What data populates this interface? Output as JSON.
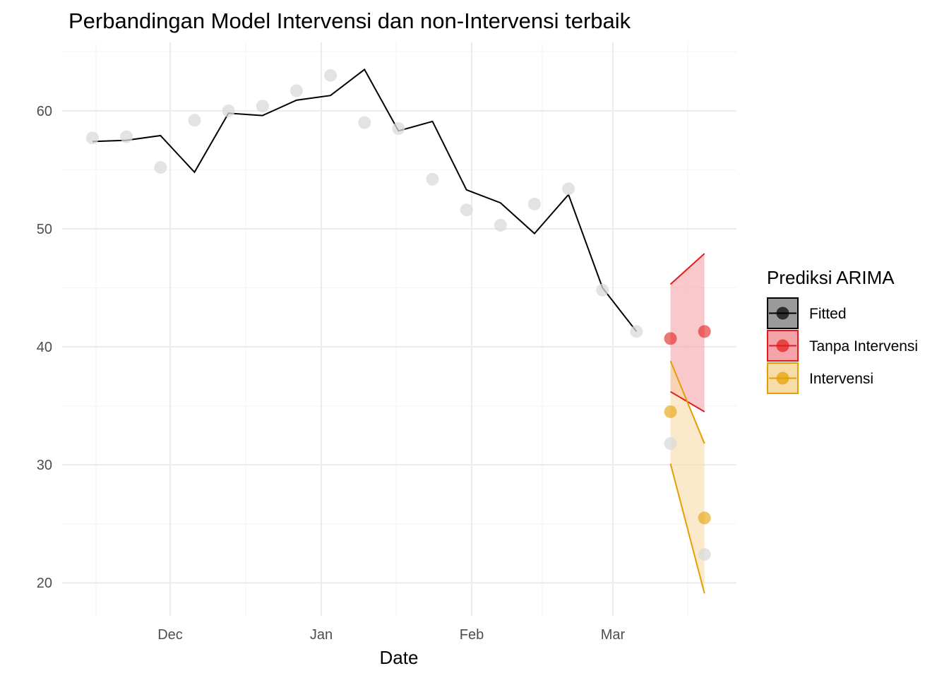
{
  "chart_data": {
    "type": "line",
    "title": "Perbandingan Model Intervensi dan non-Intervensi terbaik",
    "xlabel": "Date",
    "ylabel": "",
    "x_ticks": [
      "Dec",
      "Jan",
      "Feb",
      "Mar"
    ],
    "y_ticks": [
      20,
      30,
      40,
      50,
      60
    ],
    "ylim": [
      17.2,
      65.8
    ],
    "weeks": 19,
    "actual": [
      57.7,
      57.8,
      55.2,
      59.2,
      60.0,
      60.4,
      61.7,
      63.0,
      59.0,
      58.5,
      54.2,
      51.6,
      50.3,
      52.1,
      53.4,
      44.8,
      41.3
    ],
    "actual_test": [
      31.8,
      22.4
    ],
    "fitted": [
      57.4,
      57.5,
      57.9,
      54.8,
      59.8,
      59.6,
      60.9,
      61.3,
      63.5,
      58.3,
      59.1,
      53.3,
      52.2,
      49.6,
      52.9,
      45.0,
      41.3
    ],
    "forecast_tanpa": {
      "values": [
        40.7,
        41.3
      ],
      "lower": [
        36.2,
        34.5
      ],
      "upper": [
        45.3,
        47.9
      ]
    },
    "forecast_intervensi": {
      "values": [
        34.5,
        25.5
      ],
      "lower": [
        30.1,
        19.1
      ],
      "upper": [
        38.8,
        31.8
      ]
    },
    "legend": {
      "title": "Prediksi ARIMA",
      "items": [
        {
          "label": "Fitted",
          "color": "#000000"
        },
        {
          "label": "Tanpa Intervensi",
          "color": "#e41a1c"
        },
        {
          "label": "Intervensi",
          "color": "#e69f00"
        }
      ]
    },
    "colors": {
      "actual": "#d9d9d9",
      "fitted": "#000000",
      "tanpa": "#e41a1c",
      "tanpa_band": "#f4a4a8",
      "intervensi": "#e69f00",
      "intervensi_band": "#f7dca8",
      "grid_major": "#ebebeb",
      "grid_minor": "#f5f5f5"
    }
  }
}
